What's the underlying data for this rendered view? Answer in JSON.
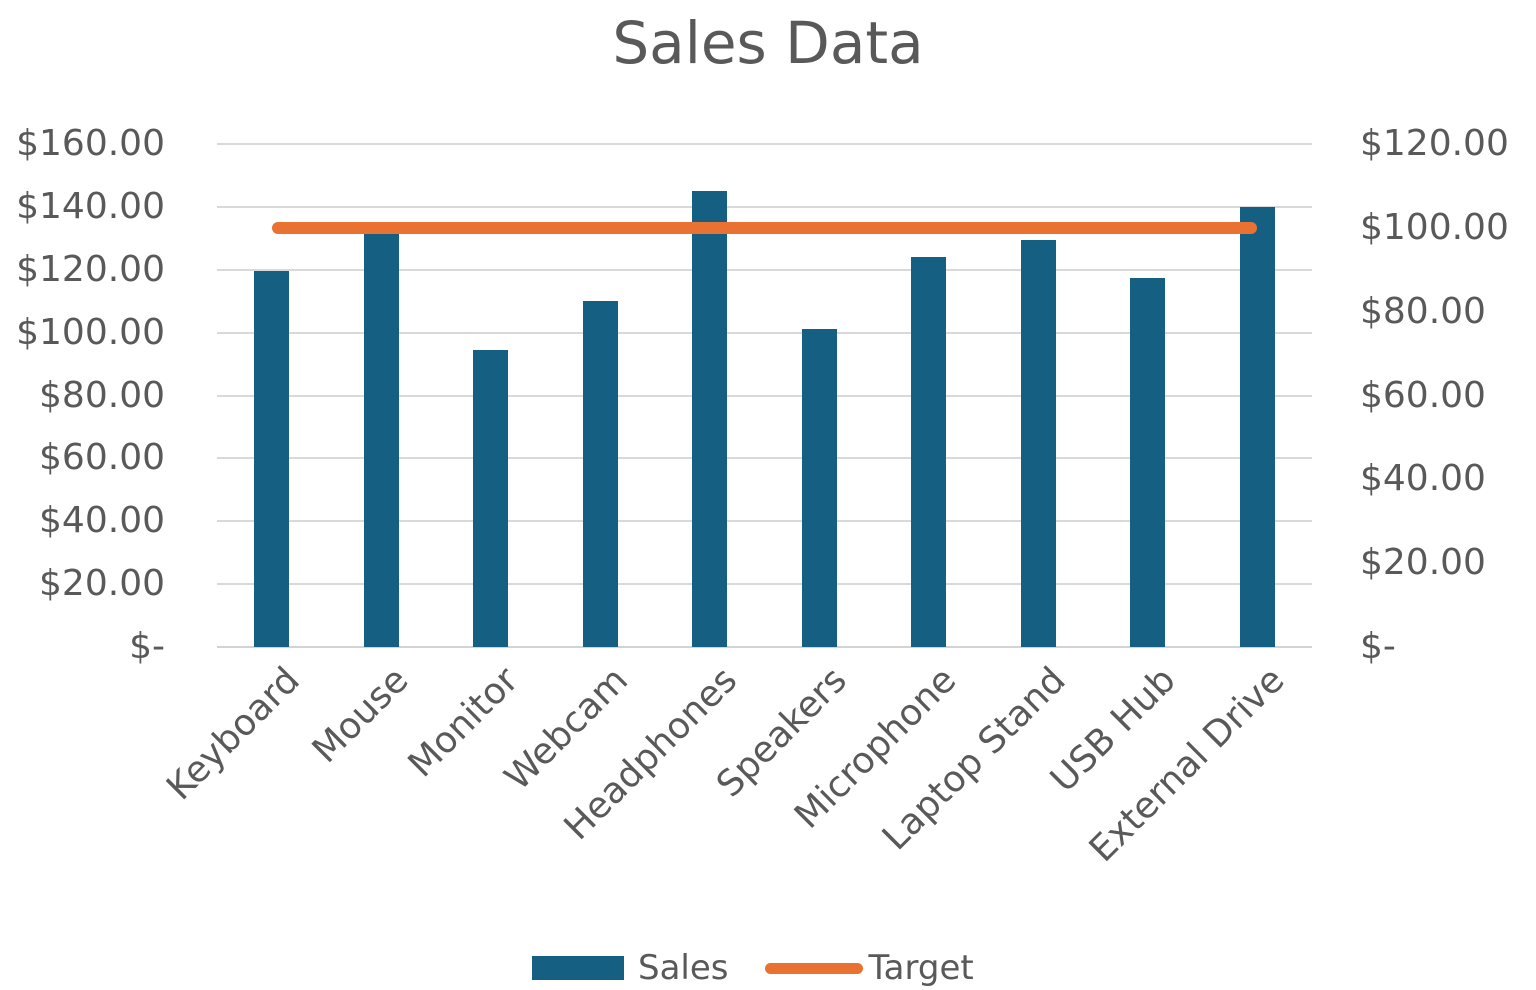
{
  "chart_data": {
    "type": "bar",
    "title": "Sales Data",
    "categories": [
      "Keyboard",
      "Mouse",
      "Monitor",
      "Webcam",
      "Headphones",
      "Speakers",
      "Microphone",
      "Laptop Stand",
      "USB Hub",
      "External Drive"
    ],
    "series": [
      {
        "name": "Sales",
        "type": "column",
        "axis": "primary",
        "color": "#156082",
        "values": [
          119.5,
          132,
          94.5,
          110,
          145,
          101,
          124,
          129.5,
          117.5,
          140
        ]
      },
      {
        "name": "Target",
        "type": "line",
        "axis": "secondary",
        "color": "#E97132",
        "values": [
          100,
          100,
          100,
          100,
          100,
          100,
          100,
          100,
          100,
          100
        ]
      }
    ],
    "primary_axis": {
      "min": 0,
      "max": 160,
      "ticks": [
        {
          "label": "$160.00",
          "value": 160
        },
        {
          "label": "$140.00",
          "value": 140
        },
        {
          "label": "$120.00",
          "value": 120
        },
        {
          "label": "$100.00",
          "value": 100
        },
        {
          "label": "$80.00",
          "value": 80
        },
        {
          "label": "$60.00",
          "value": 60
        },
        {
          "label": "$40.00",
          "value": 40
        },
        {
          "label": "$20.00",
          "value": 20
        },
        {
          "label": "$-",
          "value": 0
        }
      ]
    },
    "secondary_axis": {
      "min": 0,
      "max": 120,
      "ticks": [
        {
          "label": "$120.00",
          "value": 120
        },
        {
          "label": "$100.00",
          "value": 100
        },
        {
          "label": "$80.00",
          "value": 80
        },
        {
          "label": "$60.00",
          "value": 60
        },
        {
          "label": "$40.00",
          "value": 40
        },
        {
          "label": "$20.00",
          "value": 20
        },
        {
          "label": "$-",
          "value": 0
        }
      ]
    },
    "grid": true,
    "legend_position": "bottom",
    "colors": {
      "text": "#595959",
      "gridline": "#D9D9D9",
      "sales_bar": "#156082",
      "target_line": "#E97132",
      "background": "#FFFFFF"
    }
  }
}
